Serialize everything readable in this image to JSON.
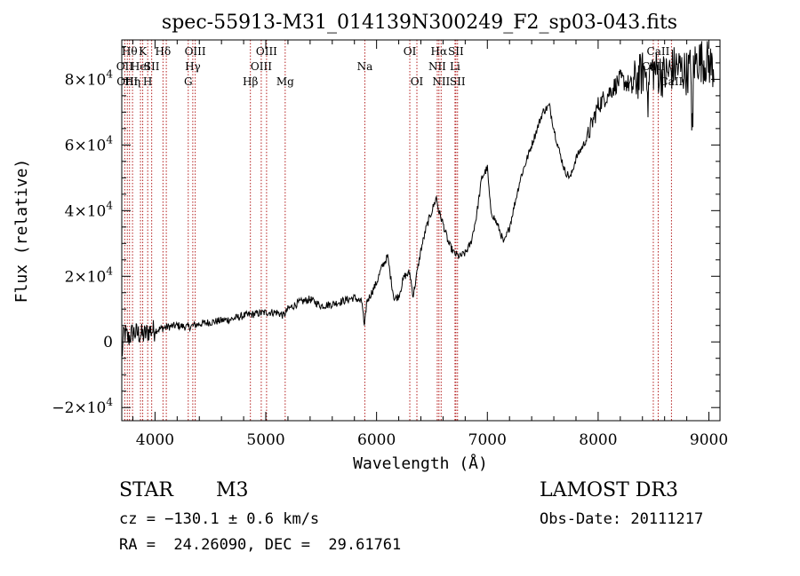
{
  "chart_data": {
    "type": "line",
    "title": "spec-55913-M31_014139N300249_F2_sp03-043.fits",
    "xlabel": "Wavelength (Å)",
    "ylabel": "Flux (relative)",
    "xlim": [
      3700,
      9100
    ],
    "ylim": [
      -24000,
      92000
    ],
    "xticks": [
      {
        "value": 4000,
        "label": "4000"
      },
      {
        "value": 5000,
        "label": "5000"
      },
      {
        "value": 6000,
        "label": "6000"
      },
      {
        "value": 7000,
        "label": "7000"
      },
      {
        "value": 8000,
        "label": "8000"
      },
      {
        "value": 9000,
        "label": "9000"
      }
    ],
    "yticks": [
      {
        "value": -20000,
        "mant": "−2×10",
        "exp": "4"
      },
      {
        "value": 0,
        "mant": "0",
        "exp": ""
      },
      {
        "value": 20000,
        "mant": "2×10",
        "exp": "4"
      },
      {
        "value": 40000,
        "mant": "4×10",
        "exp": "4"
      },
      {
        "value": 60000,
        "mant": "6×10",
        "exp": "4"
      },
      {
        "value": 80000,
        "mant": "8×10",
        "exp": "4"
      }
    ],
    "lines": [
      {
        "wave": 3727,
        "label": "OII",
        "row": 1
      },
      {
        "wave": 3750,
        "label": "OIII",
        "row": 2
      },
      {
        "wave": 3770,
        "label": "Hθ",
        "row": 0
      },
      {
        "wave": 3797,
        "label": "Hη",
        "row": 2
      },
      {
        "wave": 3869,
        "label": "HeI",
        "row": 1
      },
      {
        "wave": 3889,
        "label": "K",
        "row": 0
      },
      {
        "wave": 3934,
        "label": "H",
        "row": 2
      },
      {
        "wave": 3970,
        "label": "SII",
        "row": 1
      },
      {
        "wave": 4072,
        "label": "Hδ",
        "row": 0
      },
      {
        "wave": 4102,
        "label": "",
        "row": 0
      },
      {
        "wave": 4300,
        "label": "G",
        "row": 2
      },
      {
        "wave": 4341,
        "label": "Hγ",
        "row": 1
      },
      {
        "wave": 4363,
        "label": "OIII",
        "row": 0
      },
      {
        "wave": 4861,
        "label": "Hβ",
        "row": 2
      },
      {
        "wave": 4959,
        "label": "OIII",
        "row": 1
      },
      {
        "wave": 5007,
        "label": "OIII",
        "row": 0
      },
      {
        "wave": 5175,
        "label": "Mg",
        "row": 2
      },
      {
        "wave": 5894,
        "label": "Na",
        "row": 1
      },
      {
        "wave": 6300,
        "label": "OI",
        "row": 0
      },
      {
        "wave": 6364,
        "label": "OI",
        "row": 2
      },
      {
        "wave": 6548,
        "label": "NII",
        "row": 1
      },
      {
        "wave": 6563,
        "label": "Hα",
        "row": 0
      },
      {
        "wave": 6583,
        "label": "NII",
        "row": 2
      },
      {
        "wave": 6708,
        "label": "Li",
        "row": 1
      },
      {
        "wave": 6716,
        "label": "SII",
        "row": 0
      },
      {
        "wave": 6731,
        "label": "SII",
        "row": 2
      },
      {
        "wave": 8498,
        "label": "CaII",
        "row": 1
      },
      {
        "wave": 8542,
        "label": "CaII",
        "row": 0
      },
      {
        "wave": 8662,
        "label": "CaII",
        "row": 2
      }
    ],
    "spectrum_anchors": [
      [
        3700,
        -5000
      ],
      [
        3720,
        3000
      ],
      [
        3760,
        1000
      ],
      [
        3800,
        3000
      ],
      [
        3850,
        2500
      ],
      [
        3900,
        2000
      ],
      [
        3950,
        3500
      ],
      [
        4000,
        3500
      ],
      [
        4050,
        4000
      ],
      [
        4100,
        4500
      ],
      [
        4200,
        5000
      ],
      [
        4300,
        4500
      ],
      [
        4400,
        5500
      ],
      [
        4500,
        6000
      ],
      [
        4600,
        6500
      ],
      [
        4700,
        7000
      ],
      [
        4800,
        8000
      ],
      [
        4900,
        8500
      ],
      [
        5000,
        9000
      ],
      [
        5100,
        9000
      ],
      [
        5160,
        8000
      ],
      [
        5200,
        10000
      ],
      [
        5300,
        12000
      ],
      [
        5400,
        13000
      ],
      [
        5500,
        11000
      ],
      [
        5600,
        11500
      ],
      [
        5700,
        12500
      ],
      [
        5800,
        13500
      ],
      [
        5870,
        12000
      ],
      [
        5890,
        4000
      ],
      [
        5910,
        12000
      ],
      [
        6000,
        18000
      ],
      [
        6050,
        23000
      ],
      [
        6100,
        26000
      ],
      [
        6130,
        19000
      ],
      [
        6160,
        13000
      ],
      [
        6200,
        14000
      ],
      [
        6250,
        20000
      ],
      [
        6300,
        21000
      ],
      [
        6330,
        14000
      ],
      [
        6400,
        28000
      ],
      [
        6450,
        35000
      ],
      [
        6500,
        40000
      ],
      [
        6540,
        44000
      ],
      [
        6560,
        40000
      ],
      [
        6600,
        36000
      ],
      [
        6650,
        30000
      ],
      [
        6700,
        27000
      ],
      [
        6750,
        26000
      ],
      [
        6800,
        27000
      ],
      [
        6850,
        30000
      ],
      [
        6900,
        38000
      ],
      [
        6950,
        50000
      ],
      [
        7000,
        53000
      ],
      [
        7030,
        40000
      ],
      [
        7100,
        35000
      ],
      [
        7150,
        30000
      ],
      [
        7200,
        35000
      ],
      [
        7300,
        50000
      ],
      [
        7400,
        60000
      ],
      [
        7500,
        70000
      ],
      [
        7560,
        72000
      ],
      [
        7600,
        65000
      ],
      [
        7650,
        58000
      ],
      [
        7700,
        52000
      ],
      [
        7750,
        50000
      ],
      [
        7800,
        56000
      ],
      [
        7900,
        62000
      ],
      [
        8000,
        72000
      ],
      [
        8100,
        76000
      ],
      [
        8200,
        80000
      ],
      [
        8300,
        78000
      ],
      [
        8400,
        82000
      ],
      [
        8500,
        83000
      ],
      [
        8600,
        81000
      ],
      [
        8700,
        84000
      ],
      [
        8800,
        82000
      ],
      [
        8900,
        86000
      ],
      [
        9000,
        85000
      ],
      [
        9050,
        83000
      ]
    ]
  },
  "labels": {
    "object_class": "STAR",
    "subclass": "M3",
    "velocity": "cz = −130.1 ± 0.6 km/s",
    "survey": "LAMOST DR3",
    "obs_date": "Obs-Date: 20111217",
    "coords": "RA =  24.26090, DEC =  29.61761"
  }
}
